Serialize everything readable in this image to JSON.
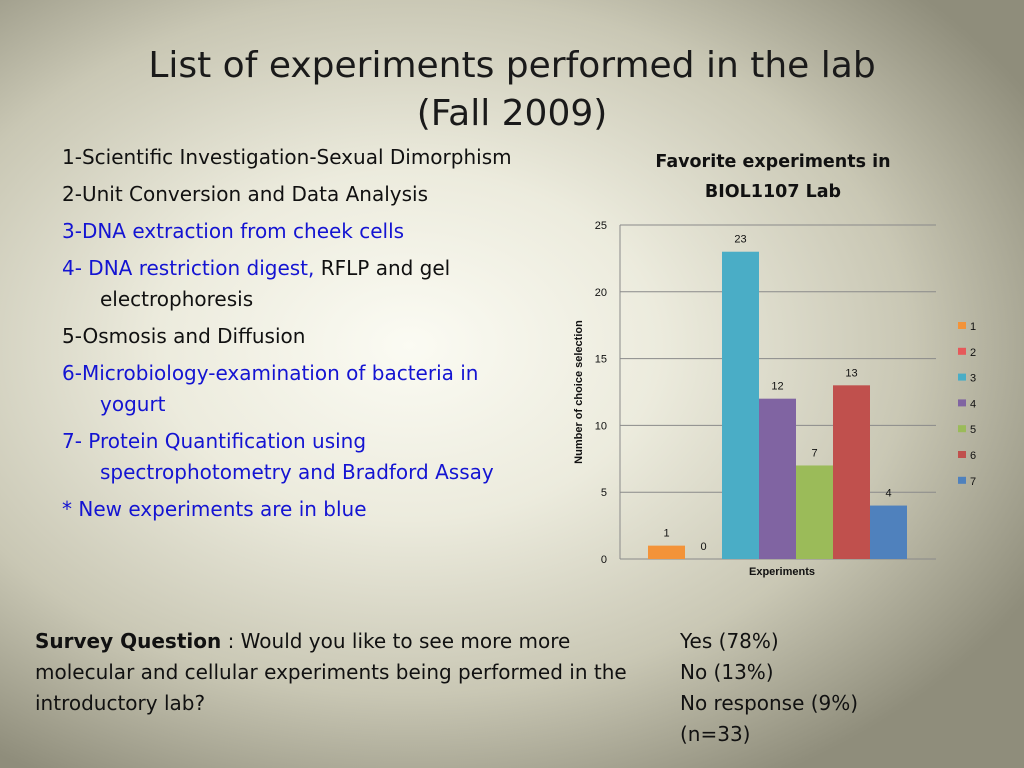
{
  "slide": {
    "title_line1": "List of experiments performed in the lab",
    "title_line2": "(Fall 2009)"
  },
  "experiments": [
    {
      "text": "1-Scientific Investigation-Sexual Dimorphism",
      "new": false
    },
    {
      "text": "2-Unit Conversion and Data Analysis",
      "new": false
    },
    {
      "text": "3-DNA extraction from cheek cells",
      "new": true
    },
    {
      "text_blue": "4- DNA restriction digest,",
      "text_black": " RFLP and gel electrophoresis",
      "new": true
    },
    {
      "text": "5-Osmosis and Diffusion",
      "new": false
    },
    {
      "text": "6-Microbiology-examination of bacteria in yogurt",
      "new": true
    },
    {
      "text": "7- Protein Quantification using spectrophotometry and Bradford Assay",
      "new": true
    },
    {
      "text": "* New experiments are in blue",
      "new": true
    }
  ],
  "survey": {
    "label": "Survey Question",
    "question": " : Would you like to see more more molecular and cellular experiments being performed in the introductory lab?"
  },
  "results": [
    "Yes (78%)",
    "No (13%)",
    "No response (9%)",
    "(n=33)"
  ],
  "colors": {
    "blue_text": "#1414d2",
    "series": [
      "#f39339",
      "#e6595a",
      "#4aadc6",
      "#8064a2",
      "#9bbb59",
      "#c0504d",
      "#4f81bd"
    ]
  },
  "chart_data": {
    "type": "bar",
    "title": "Favorite experiments in BIOL1107 Lab",
    "xlabel": "Experiments",
    "ylabel": "Number of choice selection",
    "ylim": [
      0,
      25
    ],
    "yticks": [
      0,
      5,
      10,
      15,
      20,
      25
    ],
    "grid": true,
    "legend": "right",
    "series": [
      {
        "name": "1",
        "value": 1
      },
      {
        "name": "2",
        "value": 0
      },
      {
        "name": "3",
        "value": 23
      },
      {
        "name": "4",
        "value": 12
      },
      {
        "name": "5",
        "value": 7
      },
      {
        "name": "6",
        "value": 13
      },
      {
        "name": "7",
        "value": 4
      }
    ]
  }
}
